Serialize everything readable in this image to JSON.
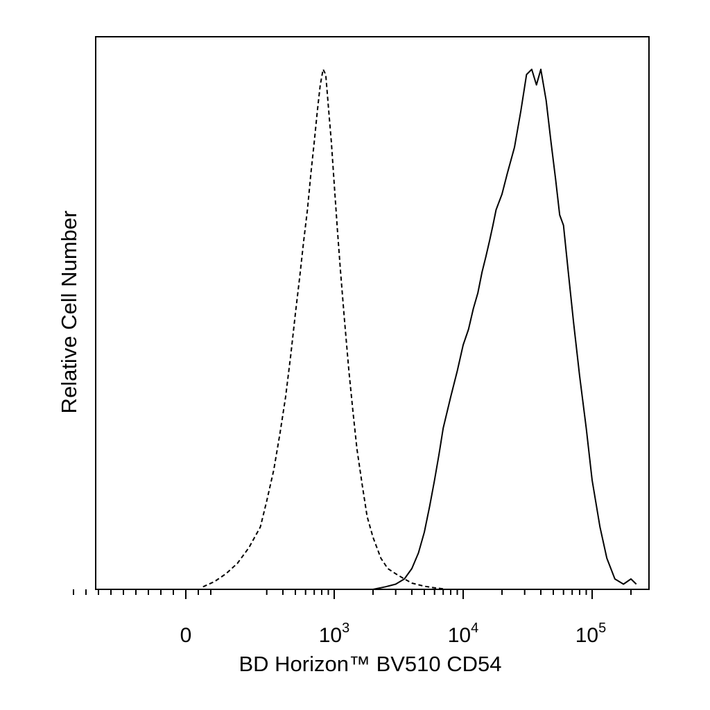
{
  "chart_data": {
    "type": "line",
    "title": "",
    "xlabel": "BD Horizon™ BV510 CD54",
    "ylabel": "Relative Cell Number",
    "x_scale": "biexponential",
    "xlim": [
      -1000,
      250000
    ],
    "ylim": [
      0,
      100
    ],
    "grid": false,
    "legend": "none",
    "x_ticks": [
      {
        "value": 0,
        "base": "0",
        "exp": ""
      },
      {
        "value": 1000,
        "base": "10",
        "exp": "3"
      },
      {
        "value": 10000,
        "base": "10",
        "exp": "4"
      },
      {
        "value": 100000,
        "base": "10",
        "exp": "5"
      }
    ],
    "series": [
      {
        "style": "dashed",
        "color": "#000000",
        "x": [
          60,
          100,
          140,
          180,
          220,
          260,
          300,
          340,
          380,
          420,
          460,
          500,
          540,
          580,
          620,
          660,
          700,
          740,
          780,
          820,
          860,
          900,
          950,
          1000,
          1060,
          1120,
          1200,
          1300,
          1400,
          1500,
          1650,
          1800,
          2000,
          2300,
          2600,
          3000,
          3500,
          4000,
          5000,
          6000,
          7000
        ],
        "y": [
          0.5,
          1.5,
          3,
          5,
          8,
          12,
          17,
          23,
          30,
          37,
          45,
          53,
          60,
          67,
          73,
          80,
          86,
          92,
          97,
          100,
          99,
          93,
          86,
          78,
          69,
          61,
          52,
          42,
          34,
          27,
          20,
          14,
          10,
          6,
          4,
          3,
          2,
          1.2,
          0.6,
          0.3,
          0.1
        ]
      },
      {
        "style": "solid",
        "color": "#000000",
        "x": [
          2000,
          2500,
          3000,
          3500,
          4000,
          4500,
          5000,
          5500,
          6000,
          6500,
          7000,
          8000,
          9000,
          10000,
          11000,
          12000,
          13000,
          14000,
          15000,
          16000,
          17000,
          18000,
          20000,
          22000,
          25000,
          28000,
          31000,
          34000,
          37000,
          40000,
          44000,
          48000,
          52000,
          56000,
          60000,
          66000,
          72000,
          80000,
          90000,
          100000,
          115000,
          130000,
          150000,
          175000,
          200000,
          220000
        ],
        "y": [
          0,
          0.5,
          1,
          2,
          4,
          7,
          11,
          16,
          21,
          26,
          31,
          37,
          42,
          47,
          50,
          54,
          57,
          61,
          64,
          67,
          70,
          73,
          76,
          80,
          85,
          92,
          99,
          100,
          97,
          100,
          94,
          86,
          79,
          72,
          70,
          60,
          51,
          41,
          31,
          21,
          12,
          6,
          2,
          1,
          2,
          1
        ]
      }
    ]
  }
}
